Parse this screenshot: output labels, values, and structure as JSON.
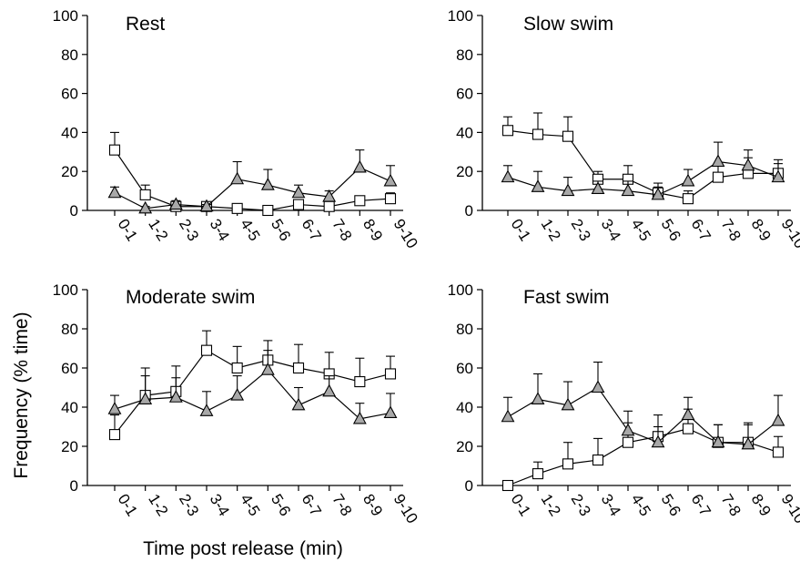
{
  "figure": {
    "ylabel": "Frequency (% time)",
    "xlabel": "Time post release (min)"
  },
  "chart_data": [
    {
      "type": "line",
      "title": "Rest",
      "categories": [
        "0-1",
        "1-2",
        "2-3",
        "3-4",
        "4-5",
        "5-6",
        "6-7",
        "7-8",
        "8-9",
        "9-10"
      ],
      "ylim": [
        0,
        100
      ],
      "yticks": [
        0,
        20,
        40,
        60,
        80,
        100
      ],
      "series": [
        {
          "marker": "square",
          "fill": "#ffffff",
          "values": [
            31,
            8,
            2,
            2,
            1,
            0,
            3,
            2,
            5,
            6
          ],
          "err": [
            9,
            5,
            2,
            1,
            1,
            1,
            2,
            2,
            2,
            3
          ]
        },
        {
          "marker": "triangle",
          "fill": "#a8a8a8",
          "values": [
            9,
            1,
            3,
            2,
            16,
            13,
            9,
            7,
            22,
            15
          ],
          "err": [
            3,
            1,
            2,
            1,
            9,
            8,
            4,
            3,
            9,
            8
          ]
        }
      ]
    },
    {
      "type": "line",
      "title": "Slow swim",
      "categories": [
        "0-1",
        "1-2",
        "2-3",
        "3-4",
        "4-5",
        "5-6",
        "6-7",
        "7-8",
        "8-9",
        "9-10"
      ],
      "ylim": [
        0,
        100
      ],
      "yticks": [
        0,
        20,
        40,
        60,
        80,
        100
      ],
      "series": [
        {
          "marker": "square",
          "fill": "#ffffff",
          "values": [
            41,
            39,
            38,
            16,
            16,
            9,
            6,
            17,
            19,
            19
          ],
          "err": [
            7,
            11,
            10,
            4,
            7,
            5,
            4,
            7,
            8,
            7
          ]
        },
        {
          "marker": "triangle",
          "fill": "#a8a8a8",
          "values": [
            17,
            12,
            10,
            11,
            10,
            8,
            15,
            25,
            23,
            17
          ],
          "err": [
            6,
            8,
            7,
            4,
            5,
            4,
            6,
            10,
            8,
            7
          ]
        }
      ]
    },
    {
      "type": "line",
      "title": "Moderate swim",
      "categories": [
        "0-1",
        "1-2",
        "2-3",
        "3-4",
        "4-5",
        "5-6",
        "6-7",
        "7-8",
        "8-9",
        "9-10"
      ],
      "ylim": [
        0,
        100
      ],
      "yticks": [
        0,
        20,
        40,
        60,
        80,
        100
      ],
      "series": [
        {
          "marker": "square",
          "fill": "#ffffff",
          "values": [
            26,
            46,
            48,
            69,
            60,
            64,
            60,
            57,
            53,
            57
          ],
          "err": [
            10,
            14,
            13,
            10,
            11,
            10,
            12,
            11,
            12,
            9
          ]
        },
        {
          "marker": "triangle",
          "fill": "#a8a8a8",
          "values": [
            39,
            44,
            45,
            38,
            46,
            59,
            41,
            48,
            34,
            37
          ],
          "err": [
            7,
            12,
            10,
            10,
            10,
            10,
            9,
            8,
            8,
            10
          ]
        }
      ]
    },
    {
      "type": "line",
      "title": "Fast swim",
      "categories": [
        "0-1",
        "1-2",
        "2-3",
        "3-4",
        "4-5",
        "5-6",
        "6-7",
        "7-8",
        "8-9",
        "9-10"
      ],
      "ylim": [
        0,
        100
      ],
      "yticks": [
        0,
        20,
        40,
        60,
        80,
        100
      ],
      "series": [
        {
          "marker": "square",
          "fill": "#ffffff",
          "values": [
            0,
            6,
            11,
            13,
            22,
            25,
            29,
            22,
            22,
            17
          ],
          "err": [
            0,
            6,
            11,
            11,
            10,
            11,
            10,
            9,
            10,
            8
          ]
        },
        {
          "marker": "triangle",
          "fill": "#a8a8a8",
          "values": [
            35,
            44,
            41,
            50,
            28,
            22,
            36,
            22,
            21,
            33
          ],
          "err": [
            10,
            13,
            12,
            13,
            10,
            8,
            9,
            9,
            10,
            13
          ]
        }
      ]
    }
  ]
}
